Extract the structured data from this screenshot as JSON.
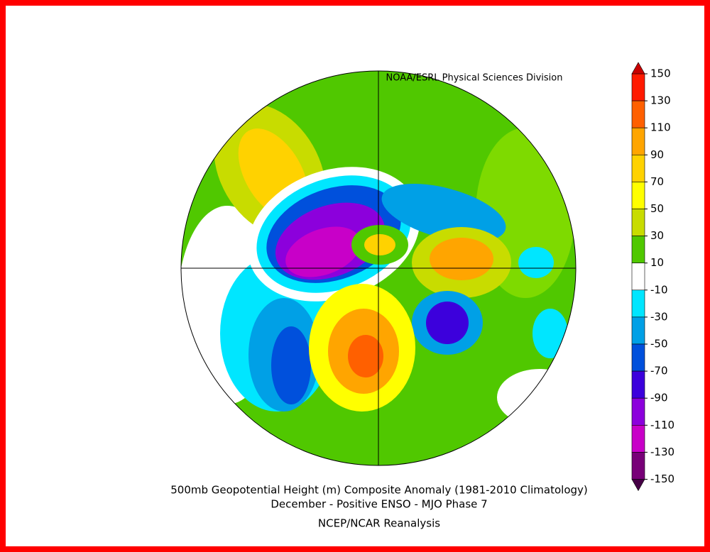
{
  "credit": "NOAA/ESRL Physical Sciences Division",
  "colorbar": {
    "ticks": [
      150,
      130,
      110,
      90,
      70,
      50,
      30,
      10,
      -10,
      -30,
      -50,
      -70,
      -90,
      -110,
      -130,
      -150
    ],
    "colors": [
      "#ff1a00",
      "#ff6000",
      "#ffa500",
      "#ffd200",
      "#ffff00",
      "#c8dc00",
      "#50c800",
      "#ffffff",
      "#00e6ff",
      "#00a0e6",
      "#0050dc",
      "#3c00dc",
      "#8c00dc",
      "#c800c8",
      "#780078"
    ],
    "top_color": "#c80000",
    "bottom_color": "#460046"
  },
  "caption": {
    "line1": "500mb Geopotential Height (m) Composite Anomaly (1981-2010 Climatology)",
    "line2": "December - Positive ENSO - MJO Phase 7",
    "line3": "NCEP/NCAR Reanalysis"
  }
}
